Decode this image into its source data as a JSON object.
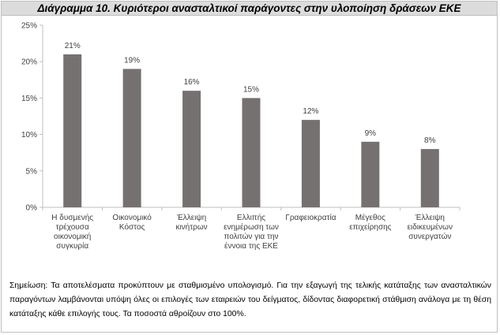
{
  "chart_data": {
    "type": "bar",
    "title": "Διάγραμμα 10. Κυριότεροι ανασταλτικοί παράγοντες στην υλοποίηση δράσεων ΕΚΕ",
    "categories": [
      [
        "Η δυσμενής",
        "τρέχουσα",
        "οικονομική",
        "συγκυρία"
      ],
      [
        "Οικονομικό",
        "Κόστος"
      ],
      [
        "Έλλειψη",
        "κινήτρων"
      ],
      [
        "Ελλιπής",
        "ενημέρωση των",
        "πολιτών για την",
        "έννοια της ΕΚΕ"
      ],
      [
        "Γραφειοκρατία"
      ],
      [
        "Μέγεθος",
        "επιχείρησης"
      ],
      [
        "Έλλειψη",
        "ειδικευμένων",
        "συνεργατών"
      ]
    ],
    "values": [
      21,
      19,
      16,
      15,
      12,
      9,
      8
    ],
    "value_labels": [
      "21%",
      "19%",
      "16%",
      "15%",
      "12%",
      "9%",
      "8%"
    ],
    "ylim": [
      0,
      25
    ],
    "yticks": [
      0,
      5,
      10,
      15,
      20,
      25
    ],
    "ytick_labels": [
      "0%",
      "5%",
      "10%",
      "15%",
      "20%",
      "25%"
    ],
    "xlabel": "",
    "ylabel": "",
    "grid": false,
    "bar_color": "#767171",
    "axis_color": "#bfbfbf"
  },
  "note": "Σημείωση: Τα αποτελέσματα προκύπτουν με σταθμισμένο υπολογισμό. Για την εξαγωγή της τελικής κατάταξης των ανασταλτικών παραγόντων λαμβάνονται υπόψη όλες οι επιλογές των εταιρειών του δείγματος, δίδοντας διαφορετική στάθμιση ανάλογα με τη θέση κατάταξης κάθε επιλογής τους. Τα ποσοστά αθροίζουν στο 100%."
}
